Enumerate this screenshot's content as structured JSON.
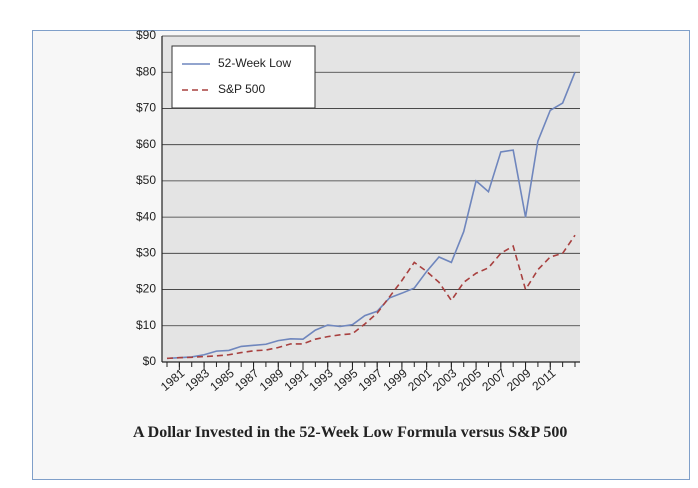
{
  "chart_data": {
    "type": "line",
    "caption": "A Dollar Invested in the 52-Week Low Formula versus S&P 500",
    "x": [
      1980,
      1981,
      1982,
      1983,
      1984,
      1985,
      1986,
      1987,
      1988,
      1989,
      1990,
      1991,
      1992,
      1993,
      1994,
      1995,
      1996,
      1997,
      1998,
      1999,
      2000,
      2001,
      2002,
      2003,
      2004,
      2005,
      2006,
      2007,
      2008,
      2009,
      2010,
      2011,
      2012,
      2013
    ],
    "series": [
      {
        "name": "52-Week Low",
        "color": "#6f86bd",
        "dash": "solid",
        "values": [
          1,
          1.2,
          1.4,
          2,
          3,
          3.2,
          4.3,
          4.6,
          4.9,
          5.9,
          6.4,
          6.3,
          8.8,
          10.2,
          9.8,
          10.3,
          12.8,
          14,
          17.7,
          19,
          20.4,
          25,
          29,
          27.5,
          36,
          50,
          47,
          58,
          58.5,
          40,
          61,
          69.5,
          71.5,
          80
        ]
      },
      {
        "name": "S&P 500",
        "color": "#a8403f",
        "dash": "dashed",
        "values": [
          1,
          1.2,
          1.3,
          1.5,
          1.7,
          2,
          2.6,
          3.1,
          3.3,
          4,
          5,
          5,
          6.3,
          7,
          7.5,
          7.8,
          10.5,
          13.5,
          18,
          22.5,
          27.5,
          25,
          22,
          17,
          22,
          24.5,
          26,
          30,
          32,
          20,
          25.5,
          29,
          30,
          35
        ]
      }
    ],
    "xlim": [
      1980,
      2013
    ],
    "xticks": [
      1981,
      1983,
      1985,
      1987,
      1989,
      1991,
      1993,
      1995,
      1997,
      1999,
      2001,
      2003,
      2005,
      2007,
      2009,
      2011
    ],
    "ylim": [
      0,
      90
    ],
    "yticks": [
      {
        "value": 0,
        "label": "$0"
      },
      {
        "value": 10,
        "label": "$10"
      },
      {
        "value": 20,
        "label": "$20"
      },
      {
        "value": 30,
        "label": "$30"
      },
      {
        "value": 40,
        "label": "$40"
      },
      {
        "value": 50,
        "label": "$50"
      },
      {
        "value": 60,
        "label": "$60"
      },
      {
        "value": 70,
        "label": "$70"
      },
      {
        "value": 80,
        "label": "$80"
      },
      {
        "value": 90,
        "label": "$90"
      }
    ],
    "grid": true,
    "legend": "upper left"
  }
}
